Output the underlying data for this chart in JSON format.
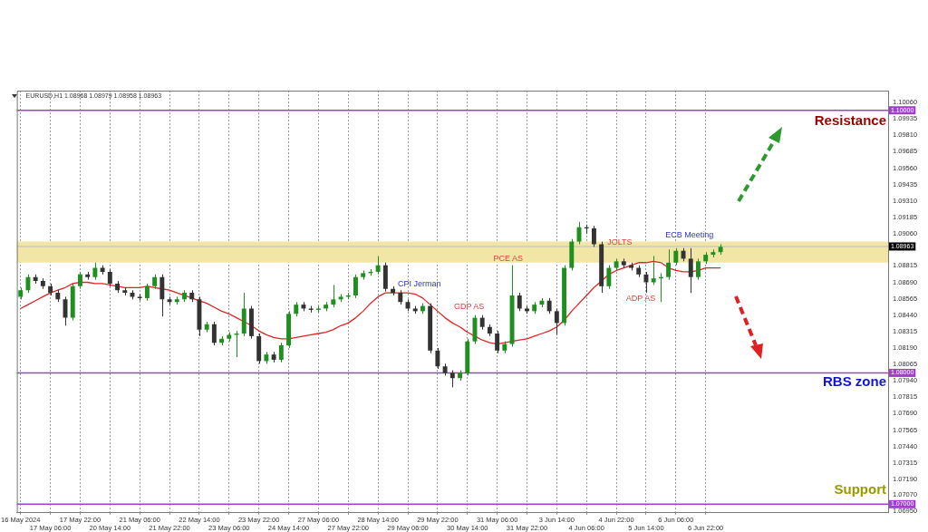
{
  "chart_data": {
    "type": "candlestick",
    "title": "EURUSD,H1 1.08968 1.08979 1.08958 1.08963",
    "categories": [
      "16 May 2024",
      null,
      null,
      null,
      "17 May 06:00",
      null,
      null,
      null,
      "17 May 22:00",
      null,
      null,
      null,
      "20 May 14:00",
      null,
      null,
      null,
      "21 May 06:00",
      null,
      null,
      null,
      "21 May 22:00",
      null,
      null,
      null,
      "22 May 14:00",
      null,
      null,
      null,
      "23 May 06:00",
      null,
      null,
      null,
      "23 May 22:00",
      null,
      null,
      null,
      "24 May 14:00",
      null,
      null,
      null,
      "27 May 06:00",
      null,
      null,
      null,
      "27 May 22:00",
      null,
      null,
      null,
      "28 May 14:00",
      null,
      null,
      null,
      "29 May 06:00",
      null,
      null,
      null,
      "29 May 22:00",
      null,
      null,
      null,
      "30 May 14:00",
      null,
      null,
      null,
      "31 May 06:00",
      null,
      null,
      null,
      "31 May 22:00",
      null,
      null,
      null,
      "3 Jun 14:00",
      null,
      null,
      null,
      "4 Jun 06:00",
      null,
      null,
      null,
      "4 Jun 22:00",
      null,
      null,
      null,
      "5 Jun 14:00",
      null,
      null,
      null,
      "6 Jun 06:00",
      null,
      null,
      null,
      "6 Jun 22:00",
      null,
      null,
      null,
      null,
      null,
      null,
      null,
      null,
      null,
      null,
      null,
      null,
      null,
      null,
      null,
      null,
      null,
      null,
      null,
      null,
      null,
      null,
      null,
      null
    ],
    "ylim": [
      1.0694,
      1.1015
    ],
    "yticks": [
      {
        "value": 1.1006,
        "label": "1.10060"
      },
      1.09935,
      {
        "value": 1.0981,
        "label": "1.09810"
      },
      1.09685,
      {
        "value": 1.0956,
        "label": "1.09560"
      },
      1.09435,
      {
        "value": 1.0931,
        "label": "1.09310"
      },
      1.09185,
      {
        "value": 1.0906,
        "label": "1.09060"
      },
      1.08815,
      {
        "value": 1.0869,
        "label": "1.08690"
      },
      1.08565,
      {
        "value": 1.0844,
        "label": "1.08440"
      },
      1.08315,
      {
        "value": 1.0819,
        "label": "1.08190"
      },
      1.08065,
      {
        "value": 1.0794,
        "label": "1.07940"
      },
      1.07815,
      {
        "value": 1.0769,
        "label": "1.07690"
      },
      1.07565,
      {
        "value": 1.0744,
        "label": "1.07440"
      },
      1.07315,
      {
        "value": 1.0719,
        "label": "1.07190"
      },
      {
        "value": 1.0707,
        "label": "1.07070"
      },
      {
        "value": 1.0695,
        "label": "1.06950"
      }
    ],
    "grid": "x",
    "legend": false,
    "series": [
      {
        "type": "line",
        "color": "#e02424",
        "values": [
          1.0849,
          1.0852,
          1.0855,
          1.0858,
          1.0861,
          1.0863,
          1.0865,
          1.0868,
          1.0869,
          1.0869,
          1.0868,
          1.0868,
          1.0867,
          1.0866,
          1.0865,
          1.0865,
          1.0865,
          1.0866,
          1.0865,
          1.0864,
          1.0863,
          1.0861,
          1.0859,
          1.0857,
          1.0855,
          1.0853,
          1.085,
          1.0847,
          1.0845,
          1.0842,
          1.0839,
          1.0836,
          1.0832,
          1.0829,
          1.0827,
          1.0826,
          1.0826,
          1.0827,
          1.0828,
          1.0829,
          1.083,
          1.0831,
          1.0833,
          1.0836,
          1.0838,
          1.0842,
          1.0847,
          1.0853,
          1.0858,
          1.0861,
          1.0861,
          1.0861,
          1.0861,
          1.086,
          1.0857,
          1.0852,
          1.0847,
          1.0842,
          1.0838,
          1.0835,
          1.0831,
          1.0828,
          1.0825,
          1.0823,
          1.0822,
          1.0823,
          1.0824,
          1.0825,
          1.0826,
          1.0828,
          1.083,
          1.0832,
          1.0835,
          1.084,
          1.0847,
          1.0853,
          1.0859,
          1.0865,
          1.087,
          1.0875,
          1.0878,
          1.088,
          1.0882,
          1.0884,
          1.0884,
          1.0885,
          1.0884,
          1.088,
          1.0878,
          1.0877,
          1.0877,
          1.0878,
          1.088,
          1.088,
          1.088,
          null,
          null,
          null,
          null,
          null,
          null,
          null,
          null,
          null,
          null,
          null,
          null,
          null,
          null,
          null,
          null,
          null,
          null,
          null,
          null,
          null,
          null
        ]
      },
      {
        "colors": [
          "#1f8f1f",
          "#1f8f1f",
          "#333333",
          "#333333",
          "#333333",
          "#333333",
          "#333333",
          "#1f8f1f",
          "#1f8f1f",
          "#333333",
          "#1f8f1f",
          "#333333",
          "#333333",
          "#333333",
          "#333333",
          "#333333",
          "#333333",
          "#1f8f1f",
          "#1f8f1f",
          "#333333",
          "#333333",
          "#1f8f1f",
          "#1f8f1f",
          "#333333",
          "#333333",
          "#1f8f1f",
          "#333333",
          "#1f8f1f",
          "#1f8f1f",
          "#1f8f1f",
          "#1f8f1f",
          "#333333",
          "#333333",
          "#1f8f1f",
          "#333333",
          "#1f8f1f",
          "#1f8f1f",
          "#1f8f1f",
          "#333333",
          "#333333",
          "#1f8f1f",
          "#1f8f1f",
          "#1f8f1f",
          "#1f8f1f",
          "#1f8f1f",
          "#1f8f1f",
          "#1f8f1f",
          "#1f8f1f",
          "#1f8f1f",
          "#333333",
          "#333333",
          "#333333",
          "#333333",
          "#333333",
          "#1f8f1f",
          "#333333",
          "#333333",
          "#333333",
          "#333333",
          "#1f8f1f",
          "#1f8f1f",
          "#1f8f1f",
          "#333333",
          "#333333",
          "#333333",
          "#1f8f1f",
          "#1f8f1f",
          "#333333",
          "#333333",
          "#1f8f1f",
          "#1f8f1f",
          "#333333",
          "#333333",
          "#1f8f1f",
          "#1f8f1f",
          "#1f8f1f",
          "#333333",
          "#333333",
          "#333333",
          "#1f8f1f",
          "#1f8f1f",
          "#333333",
          "#333333",
          "#333333",
          "#333333",
          "#1f8f1f",
          "#1f8f1f",
          "#1f8f1f",
          "#1f8f1f",
          "#333333",
          "#333333",
          "#1f8f1f",
          "#1f8f1f",
          "#1f8f1f",
          "#1f8f1f",
          null,
          null,
          null,
          null,
          null,
          null,
          null,
          null,
          null,
          null,
          null,
          null,
          null,
          null,
          null,
          null,
          null,
          null,
          null,
          null,
          null,
          null
        ],
        "ohlc": [
          [
            1.0858,
            1.0865,
            1.0856,
            1.0863
          ],
          [
            1.0863,
            1.0875,
            1.0861,
            1.0873
          ],
          [
            1.0873,
            1.0875,
            1.0868,
            1.087
          ],
          [
            1.087,
            1.0872,
            1.0864,
            1.0866
          ],
          [
            1.0866,
            1.0868,
            1.0859,
            1.0861
          ],
          [
            1.0861,
            1.0863,
            1.0854,
            1.0856
          ],
          [
            1.0856,
            1.0858,
            1.0836,
            1.0842
          ],
          [
            1.0842,
            1.0868,
            1.084,
            1.0866
          ],
          [
            1.0866,
            1.0877,
            1.0864,
            1.0875
          ],
          [
            1.0875,
            1.0877,
            1.0871,
            1.0873
          ],
          [
            1.0873,
            1.0884,
            1.0871,
            1.088
          ],
          [
            1.088,
            1.0882,
            1.0875,
            1.0877
          ],
          [
            1.0877,
            1.0879,
            1.0866,
            1.0868
          ],
          [
            1.0868,
            1.087,
            1.0861,
            1.0863
          ],
          [
            1.0863,
            1.0865,
            1.0859,
            1.0861
          ],
          [
            1.0861,
            1.0863,
            1.0856,
            1.0858
          ],
          [
            1.0858,
            1.086,
            1.0855,
            1.0857
          ],
          [
            1.0857,
            1.0868,
            1.0855,
            1.0866
          ],
          [
            1.0866,
            1.0875,
            1.0864,
            1.0873
          ],
          [
            1.0873,
            1.0875,
            1.0843,
            1.0856
          ],
          [
            1.0856,
            1.0858,
            1.0852,
            1.0854
          ],
          [
            1.0854,
            1.0858,
            1.0852,
            1.0856
          ],
          [
            1.0856,
            1.0863,
            1.0854,
            1.0861
          ],
          [
            1.0861,
            1.0863,
            1.0854,
            1.0856
          ],
          [
            1.0856,
            1.0858,
            1.0828,
            1.0833
          ],
          [
            1.0833,
            1.0839,
            1.0831,
            1.0837
          ],
          [
            1.0837,
            1.0839,
            1.0821,
            1.0823
          ],
          [
            1.0823,
            1.0828,
            1.0821,
            1.0826
          ],
          [
            1.0826,
            1.0831,
            1.0824,
            1.0829
          ],
          [
            1.0829,
            1.0832,
            1.0812,
            1.083
          ],
          [
            1.083,
            1.0861,
            1.0828,
            1.0849
          ],
          [
            1.0849,
            1.0851,
            1.0826,
            1.0828
          ],
          [
            1.0828,
            1.083,
            1.0807,
            1.0809
          ],
          [
            1.0809,
            1.0816,
            1.0807,
            1.0814
          ],
          [
            1.0814,
            1.0816,
            1.0808,
            1.081
          ],
          [
            1.081,
            1.0823,
            1.0808,
            1.0821
          ],
          [
            1.0821,
            1.0847,
            1.0819,
            1.0845
          ],
          [
            1.0845,
            1.0854,
            1.0843,
            1.0852
          ],
          [
            1.0852,
            1.0854,
            1.0847,
            1.0849
          ],
          [
            1.0849,
            1.0851,
            1.0846,
            1.0848
          ],
          [
            1.0848,
            1.0851,
            1.0846,
            1.0849
          ],
          [
            1.0849,
            1.0854,
            1.0847,
            1.0852
          ],
          [
            1.0852,
            1.0867,
            1.085,
            1.0856
          ],
          [
            1.0856,
            1.086,
            1.0854,
            1.0858
          ],
          [
            1.0858,
            1.0861,
            1.0856,
            1.0859
          ],
          [
            1.0859,
            1.0875,
            1.0857,
            1.0873
          ],
          [
            1.0873,
            1.0878,
            1.0871,
            1.0876
          ],
          [
            1.0876,
            1.0879,
            1.0874,
            1.0877
          ],
          [
            1.0877,
            1.0889,
            1.0875,
            1.0882
          ],
          [
            1.0882,
            1.0884,
            1.0862,
            1.0864
          ],
          [
            1.0864,
            1.0866,
            1.0859,
            1.0861
          ],
          [
            1.0861,
            1.0863,
            1.0852,
            1.0854
          ],
          [
            1.0854,
            1.0856,
            1.0847,
            1.0849
          ],
          [
            1.0849,
            1.0851,
            1.0845,
            1.0847
          ],
          [
            1.0847,
            1.0853,
            1.0845,
            1.0851
          ],
          [
            1.0851,
            1.0853,
            1.0815,
            1.0817
          ],
          [
            1.0817,
            1.0819,
            1.0803,
            1.0805
          ],
          [
            1.0805,
            1.0807,
            1.0798,
            1.08
          ],
          [
            1.08,
            1.0802,
            1.0789,
            1.0796
          ],
          [
            1.0796,
            1.0802,
            1.0794,
            1.08
          ],
          [
            1.08,
            1.0826,
            1.0798,
            1.0824
          ],
          [
            1.0824,
            1.0844,
            1.0822,
            1.0842
          ],
          [
            1.0842,
            1.0844,
            1.0833,
            1.0835
          ],
          [
            1.0835,
            1.0837,
            1.0828,
            1.083
          ],
          [
            1.083,
            1.0832,
            1.0815,
            1.0817
          ],
          [
            1.0817,
            1.0824,
            1.0815,
            1.0822
          ],
          [
            1.0822,
            1.0882,
            1.082,
            1.0859
          ],
          [
            1.0859,
            1.0861,
            1.0847,
            1.0849
          ],
          [
            1.0849,
            1.0851,
            1.0845,
            1.0847
          ],
          [
            1.0847,
            1.0854,
            1.0845,
            1.0852
          ],
          [
            1.0852,
            1.0857,
            1.085,
            1.0855
          ],
          [
            1.0855,
            1.0857,
            1.0845,
            1.0847
          ],
          [
            1.0847,
            1.0849,
            1.0829,
            1.0838
          ],
          [
            1.0838,
            1.0882,
            1.0836,
            1.088
          ],
          [
            1.088,
            1.0902,
            1.0878,
            1.09
          ],
          [
            1.09,
            1.0915,
            1.0898,
            1.0911
          ],
          [
            1.0911,
            1.0913,
            1.0906,
            1.091
          ],
          [
            1.091,
            1.0912,
            1.0896,
            1.0898
          ],
          [
            1.0898,
            1.09,
            1.0861,
            1.0866
          ],
          [
            1.0866,
            1.0882,
            1.0864,
            1.088
          ],
          [
            1.088,
            1.0887,
            1.0878,
            1.0885
          ],
          [
            1.0885,
            1.0887,
            1.088,
            1.0882
          ],
          [
            1.0882,
            1.0884,
            1.0878,
            1.088
          ],
          [
            1.088,
            1.0882,
            1.0873,
            1.0875
          ],
          [
            1.0875,
            1.0877,
            1.0861,
            1.0869
          ],
          [
            1.0869,
            1.0889,
            1.0867,
            1.0872
          ],
          [
            1.0872,
            1.0876,
            1.0854,
            1.0873
          ],
          [
            1.0873,
            1.0894,
            1.0871,
            1.0884
          ],
          [
            1.0884,
            1.0895,
            1.0882,
            1.0893
          ],
          [
            1.0893,
            1.0895,
            1.0885,
            1.0887
          ],
          [
            1.0887,
            1.0895,
            1.0861,
            1.0873
          ],
          [
            1.0873,
            1.0887,
            1.0871,
            1.0885
          ],
          [
            1.0885,
            1.0892,
            1.0883,
            1.089
          ],
          [
            1.089,
            1.0894,
            1.0888,
            1.0892
          ],
          [
            1.0892,
            1.0898,
            1.089,
            1.0896
          ],
          null,
          null,
          null,
          null,
          null,
          null,
          null,
          null,
          null,
          null,
          null,
          null,
          null,
          null,
          null,
          null,
          null,
          null,
          null,
          null,
          null,
          null
        ]
      }
    ],
    "bands": [
      {
        "axis": "y",
        "from": 1.0884,
        "to": 1.09,
        "color": "#f2e6a6"
      }
    ],
    "ref_lines": [
      {
        "axis": "y",
        "value": 1.1,
        "label": "1.10000",
        "color": "#a040c8"
      },
      {
        "axis": "y",
        "value": 1.08,
        "label": "1.08000",
        "color": "#a040c8"
      },
      {
        "axis": "y",
        "value": 1.07,
        "label": "1.07000",
        "color": "#a040c8"
      },
      {
        "axis": "y",
        "value": 1.08963,
        "label": "1.08963",
        "color": "#c8c8c8"
      }
    ],
    "annotations": [
      "CPI Jerman",
      "GDP AS",
      "PCE AS",
      "JOLTS",
      "ADP AS",
      "ECB Meeting",
      "Resistance",
      "RBS zone",
      "Support"
    ]
  }
}
